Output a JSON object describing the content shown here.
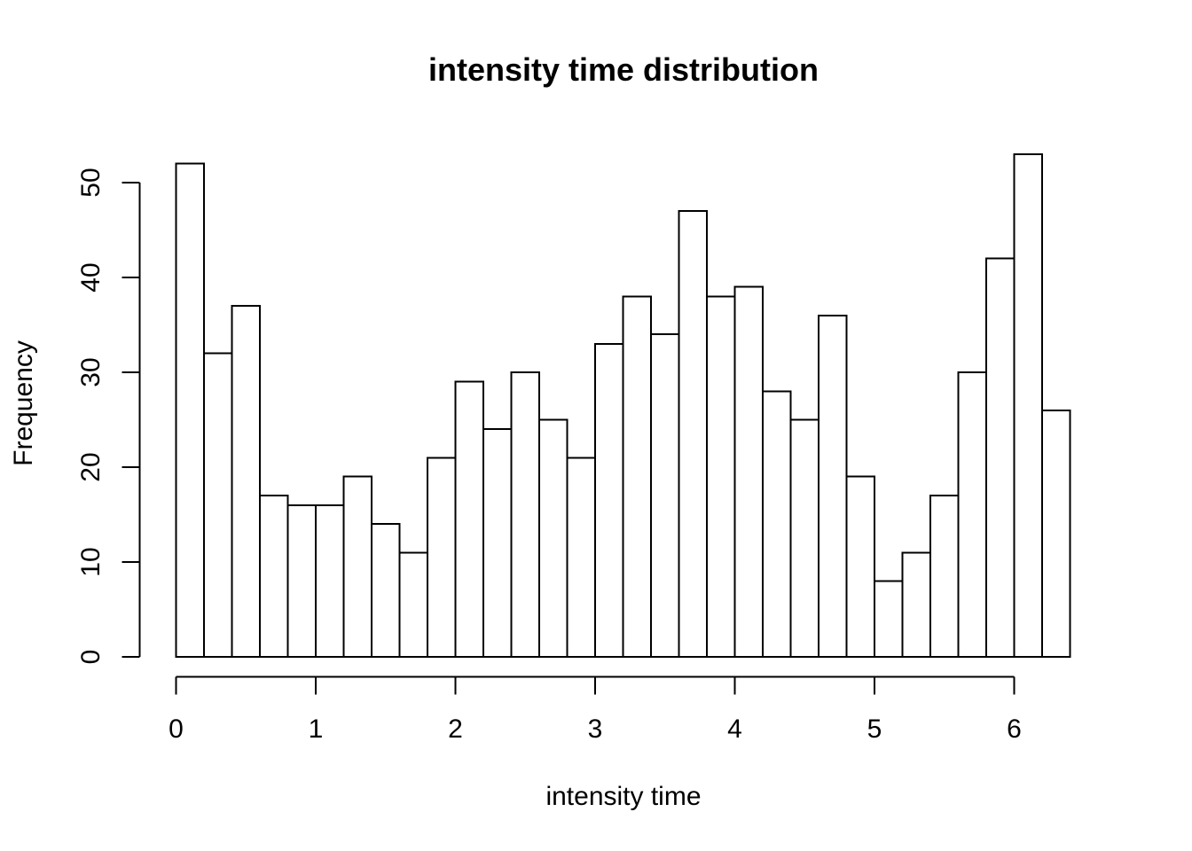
{
  "chart_data": {
    "type": "bar",
    "subtype": "histogram",
    "title": "intensity time distribution",
    "xlabel": "intensity time",
    "ylabel": "Frequency",
    "bin_start": 0,
    "bin_width": 0.2,
    "values": [
      52,
      32,
      37,
      17,
      16,
      16,
      19,
      14,
      11,
      21,
      29,
      24,
      30,
      25,
      21,
      33,
      38,
      34,
      47,
      38,
      39,
      28,
      25,
      36,
      19,
      8,
      11,
      17,
      30,
      42,
      53,
      26
    ],
    "x_ticks": [
      0,
      1,
      2,
      3,
      4,
      5,
      6
    ],
    "y_ticks": [
      0,
      10,
      20,
      30,
      40,
      50
    ],
    "xlim": [
      0,
      6.4
    ],
    "ylim": [
      0,
      53
    ],
    "grid": false,
    "legend": "none",
    "bar_fill": "#ffffff",
    "bar_stroke": "#000000",
    "axis_color": "#000000",
    "text_color": "#000000",
    "background": "#ffffff"
  }
}
